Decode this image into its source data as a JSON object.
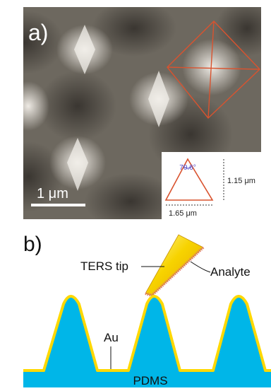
{
  "panel_a": {
    "label": "a)",
    "scale_bar_label": "1 μm",
    "inset": {
      "angle_label": "70.6°",
      "height_label": "1.15 μm",
      "width_label": "1.65 μm"
    }
  },
  "panel_b": {
    "label": "b)",
    "tip_label": "TERS tip",
    "analyte_label": "Analyte",
    "gold_label": "Au",
    "substrate_label": "PDMS"
  },
  "colors": {
    "sem_base": "#6d685f",
    "pyramid_outline": "#d9532f",
    "substrate": "#00b6e8",
    "gold": "#ffd800",
    "tip_yellow": "#f7d300",
    "analyte": "#e07a6a"
  }
}
